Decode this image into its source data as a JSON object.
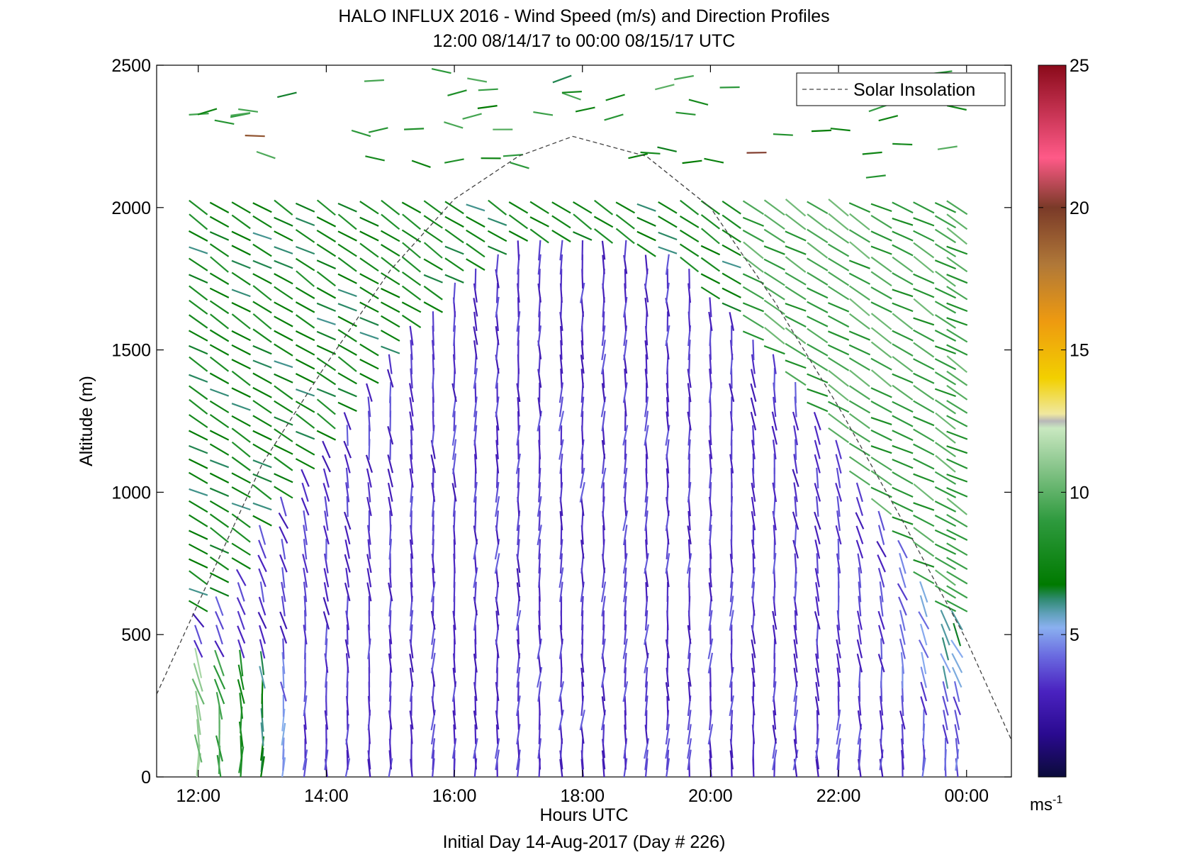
{
  "chart_data": {
    "type": "wind-barb-profile",
    "title": "HALO INFLUX 2016 - Wind Speed (m/s) and Direction Profiles",
    "subtitle": "12:00 08/14/17 to 00:00 08/15/17  UTC",
    "xlabel": "Hours UTC",
    "xlabel2": "Initial Day 14-Aug-2017 (Day # 226)",
    "ylabel": "Altitude (m)",
    "xlim_hours": [
      11.35,
      24.7
    ],
    "ylim": [
      0,
      2500
    ],
    "x_ticks": [
      {
        "value": 12,
        "label": "12:00"
      },
      {
        "value": 14,
        "label": "14:00"
      },
      {
        "value": 16,
        "label": "16:00"
      },
      {
        "value": 18,
        "label": "18:00"
      },
      {
        "value": 20,
        "label": "20:00"
      },
      {
        "value": 22,
        "label": "22:00"
      },
      {
        "value": 24,
        "label": "00:00"
      }
    ],
    "y_ticks": [
      {
        "value": 0,
        "label": "0"
      },
      {
        "value": 500,
        "label": "500"
      },
      {
        "value": 1000,
        "label": "1000"
      },
      {
        "value": 1500,
        "label": "1500"
      },
      {
        "value": 2000,
        "label": "2000"
      },
      {
        "value": 2500,
        "label": "2500"
      }
    ],
    "legend": {
      "label": "Solar Insolation",
      "placement": "top-right",
      "style": "dashed"
    },
    "colorbar": {
      "range": [
        0,
        25
      ],
      "ticks": [
        {
          "value": 5,
          "label": "5"
        },
        {
          "value": 10,
          "label": "10"
        },
        {
          "value": 15,
          "label": "15"
        },
        {
          "value": 20,
          "label": "20"
        },
        {
          "value": 25,
          "label": "25"
        }
      ],
      "unit_base": "ms",
      "unit_exp": "-1"
    },
    "solar_insolation_curve": {
      "x_hours": [
        11.35,
        12.0,
        13.0,
        14.0,
        15.0,
        16.0,
        17.0,
        17.85,
        19.0,
        20.0,
        21.0,
        22.0,
        23.0,
        24.0,
        24.7
      ],
      "altitude_equiv_m": [
        290,
        610,
        1100,
        1450,
        1780,
        2030,
        2180,
        2250,
        2180,
        2000,
        1670,
        1300,
        900,
        480,
        130
      ]
    },
    "profile_times_hours": [
      12.0,
      12.33,
      12.67,
      13.0,
      13.33,
      13.67,
      14.0,
      14.33,
      14.67,
      15.0,
      15.33,
      15.67,
      16.0,
      16.33,
      16.67,
      17.0,
      17.33,
      17.67,
      18.0,
      18.33,
      18.67,
      19.0,
      19.33,
      19.67,
      20.0,
      20.33,
      20.67,
      21.0,
      21.33,
      21.67,
      22.0,
      22.33,
      22.67,
      23.0,
      23.33,
      23.67,
      23.85
    ],
    "altitude_levels_m": [
      30,
      60,
      100,
      150,
      200,
      250,
      300,
      350,
      400,
      450,
      500,
      550,
      600,
      650,
      700,
      750,
      800,
      850,
      900,
      950,
      1000,
      1050,
      1100,
      1150,
      1200,
      1250,
      1300,
      1350,
      1400,
      1450,
      1500,
      1550,
      1600,
      1650,
      1700,
      1750,
      1800,
      1850,
      1900,
      1950,
      2000
    ],
    "wind_field_summary": {
      "low_level_morning_speed_ms": 9,
      "boundary_layer_midday_speed_ms": 2.5,
      "midday_direction_deg": 180,
      "upper_level_speed_ms": 6,
      "evening_upper_speed_ms": 8
    }
  }
}
